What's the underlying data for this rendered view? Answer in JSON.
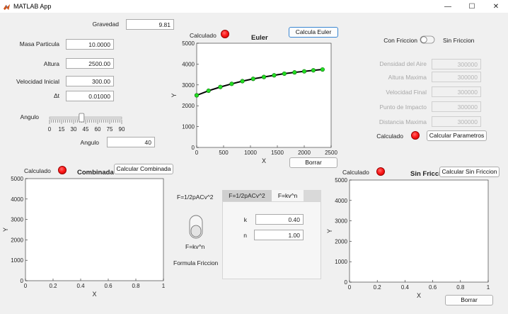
{
  "window": {
    "title": "MATLAB App",
    "minimize_glyph": "—",
    "maximize_glyph": "☐",
    "close_glyph": "✕"
  },
  "inputs": {
    "gravedad": {
      "label": "Gravedad",
      "value": "9.81"
    },
    "masa": {
      "label": "Masa Particula",
      "value": "10.0000"
    },
    "altura": {
      "label": "Altura",
      "value": "2500.00"
    },
    "velocidad": {
      "label": "Velocidad Inicial",
      "value": "300.00"
    },
    "dt": {
      "label": "Δt",
      "value": "0.01000"
    }
  },
  "angle": {
    "slider_label": "Angulo",
    "field_label": "Angulo",
    "value": "40",
    "slider_value": 40,
    "ticks": [
      "0",
      "15",
      "30",
      "45",
      "60",
      "75",
      "90"
    ]
  },
  "euler": {
    "status_label": "Calculado",
    "button": "Calcula Euler",
    "clear_button": "Borrar",
    "chart_data": {
      "type": "line",
      "title": "Euler",
      "xlabel": "X",
      "ylabel": "Y",
      "xlim": [
        0,
        2500
      ],
      "ylim": [
        0,
        5000
      ],
      "xticks": [
        "0",
        "500",
        "1000",
        "1500",
        "2000",
        "2500"
      ],
      "yticks": [
        "0",
        "1000",
        "2000",
        "3000",
        "4000",
        "5000"
      ],
      "x": [
        0,
        220,
        440,
        650,
        850,
        1050,
        1250,
        1440,
        1630,
        1820,
        2000,
        2170,
        2340
      ],
      "y": [
        2500,
        2720,
        2900,
        3050,
        3180,
        3290,
        3380,
        3460,
        3540,
        3600,
        3650,
        3700,
        3740
      ]
    }
  },
  "friction": {
    "toggle_left": "Con Friccion",
    "toggle_right": "Sin Friccion",
    "results": [
      {
        "label": "Densidad del Aire",
        "value": "300000"
      },
      {
        "label": "Altura Maxima",
        "value": "300000"
      },
      {
        "label": "Velocidad Final",
        "value": "300000"
      },
      {
        "label": "Punto de Impacto",
        "value": "300000"
      },
      {
        "label": "Distancia Maxima",
        "value": "300000"
      }
    ],
    "status_label": "Calculado",
    "button": "Calcular Parametros"
  },
  "combinada": {
    "status_label": "Calculado",
    "button": "Calcular Combinada",
    "chart_data": {
      "type": "line",
      "title": "Combinada",
      "xlabel": "X",
      "ylabel": "Y",
      "xlim": [
        0,
        1
      ],
      "ylim": [
        0,
        5000
      ],
      "xticks": [
        "0",
        "0.2",
        "0.4",
        "0.6",
        "0.8",
        "1"
      ],
      "yticks": [
        "0",
        "1000",
        "2000",
        "3000",
        "4000",
        "5000"
      ],
      "x": [],
      "y": []
    }
  },
  "sin_friccion": {
    "status_label": "Calculado",
    "button": "Calcular Sin Friccion",
    "clear_button": "Borrar",
    "chart_data": {
      "type": "line",
      "title": "Sin Friccion",
      "xlabel": "X",
      "ylabel": "Y",
      "xlim": [
        0,
        1
      ],
      "ylim": [
        0,
        5000
      ],
      "xticks": [
        "0",
        "0.2",
        "0.4",
        "0.6",
        "0.8",
        "1"
      ],
      "yticks": [
        "0",
        "1000",
        "2000",
        "3000",
        "4000",
        "5000"
      ],
      "x": [],
      "y": []
    }
  },
  "formula": {
    "switch_top_label": "F=1/2pACv^2",
    "switch_bottom_label": "F=kv^n",
    "caption": "Formula Friccion",
    "tabs": [
      {
        "label": "F=1/2pACv^2",
        "active": false
      },
      {
        "label": "F=kv^n",
        "active": true
      }
    ],
    "k": {
      "label": "k",
      "value": "0.40"
    },
    "n": {
      "label": "n",
      "value": "1.00"
    }
  },
  "colors": {
    "lamp_red": "#ff1a1a",
    "line_black": "#000000",
    "marker_green": "#22dd22",
    "focus_blue": "#3a86d1"
  }
}
